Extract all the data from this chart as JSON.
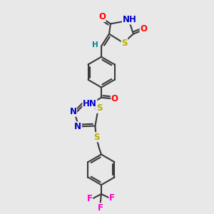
{
  "bg_color": "#e8e8e8",
  "bond_color": "#3a3a3a",
  "bond_width": 1.5,
  "atom_colors": {
    "O": "#ff0000",
    "N": "#0000cc",
    "S": "#bbaa00",
    "F": "#ff00cc",
    "H": "#008888",
    "C": "#3a3a3a"
  },
  "font_size": 8.5,
  "fig_width": 3.0,
  "fig_height": 3.0,
  "xlim": [
    0,
    10
  ],
  "ylim": [
    0,
    10
  ]
}
